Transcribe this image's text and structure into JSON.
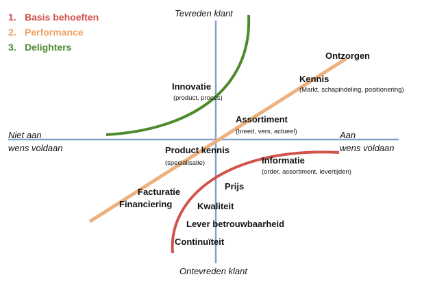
{
  "legend": [
    {
      "number": "1.",
      "label": "Basis behoeften"
    },
    {
      "number": "2.",
      "label": "Performance"
    },
    {
      "number": "3.",
      "label": "Delighters"
    }
  ],
  "axes": {
    "top": "Tevreden klant",
    "bottom": "Ontevreden klant",
    "left": [
      "Niet aan",
      "wens voldaan"
    ],
    "right": [
      "Aan",
      "wens voldaan"
    ]
  },
  "items": [
    {
      "label": "Ontzorgen"
    },
    {
      "label": "Kennis",
      "detail": "(Markt, schapindeling, positionering)"
    },
    {
      "label": "Innovatie",
      "detail": "(product, proces)"
    },
    {
      "label": "Assortiment",
      "detail": "(breed, vers, actueel)"
    },
    {
      "label": "Product kennis",
      "detail": "(specialisatie)"
    },
    {
      "label": "Informatie",
      "detail": "(order, assortiment, levertijden)"
    },
    {
      "label": "Prijs"
    },
    {
      "label": "Facturatie"
    },
    {
      "label": "Financiering"
    },
    {
      "label": "Kwaliteit"
    },
    {
      "label": "Lever betrouwbaarheid"
    },
    {
      "label": "Continuïteit"
    }
  ]
}
